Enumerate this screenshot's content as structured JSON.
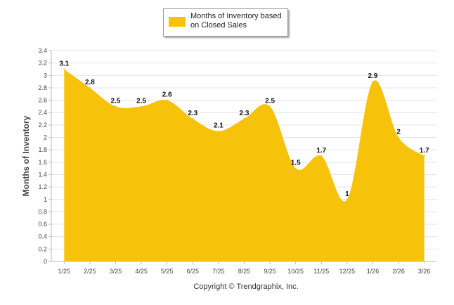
{
  "chart_data": {
    "type": "area",
    "legend": "Months of Inventory based on Closed Sales",
    "categories": [
      "1/25",
      "2/25",
      "3/25",
      "4/25",
      "5/25",
      "6/25",
      "7/25",
      "8/25",
      "9/25",
      "10/25",
      "11/25",
      "12/25",
      "1/26",
      "2/26",
      "3/26"
    ],
    "series": [
      {
        "name": "Months of Inventory based on Closed Sales",
        "values": [
          3.1,
          2.8,
          2.5,
          2.5,
          2.6,
          2.3,
          2.1,
          2.3,
          2.5,
          1.5,
          1.7,
          1,
          2.9,
          2,
          1.7
        ]
      }
    ],
    "data_labels": [
      "3.1",
      "2.8",
      "2.5",
      "2.5",
      "2.6",
      "2.3",
      "2.1",
      "2.3",
      "2.5",
      "1.5",
      "1.7",
      "1",
      "2.9",
      "2",
      "1.7"
    ],
    "ylabel": "Months of Inventory",
    "xlabel": "",
    "ylim": [
      0,
      3.4
    ],
    "yticks": [
      "0",
      "0.2",
      "0.4",
      "0.6",
      "0.8",
      "1",
      "1.2",
      "1.4",
      "1.6",
      "1.8",
      "2",
      "2.2",
      "2.4",
      "2.6",
      "2.8",
      "3",
      "3.2",
      "3.4"
    ],
    "grid": true,
    "legend_position": "top-center"
  },
  "colors": {
    "fill": "#f7c30a",
    "grid": "#e4e4e4",
    "axis": "#bbbbbb"
  },
  "footer": {
    "copyright": "Copyright © Trendgraphix, Inc."
  }
}
